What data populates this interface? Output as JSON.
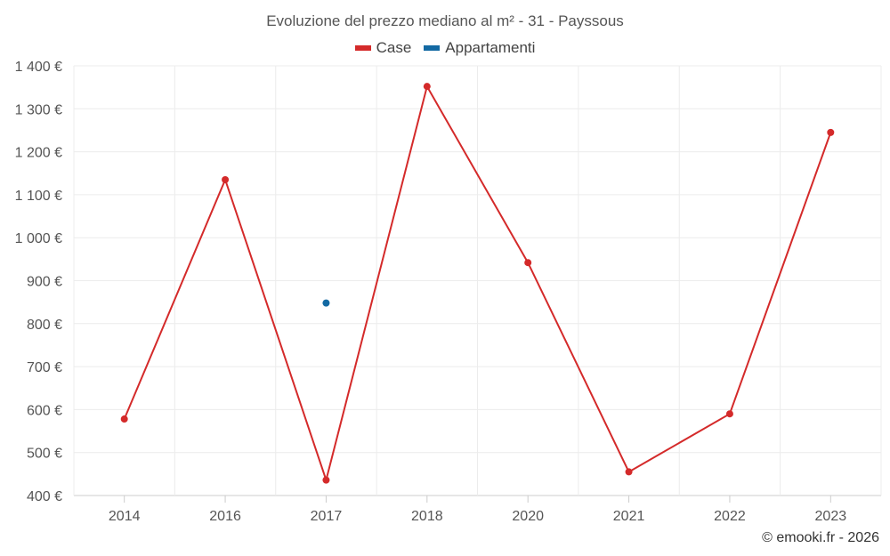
{
  "chart_data": {
    "type": "line",
    "title": "Evoluzione del prezzo mediano al m² - 31 - Payssous",
    "categories": [
      "2014",
      "2016",
      "2017",
      "2018",
      "2020",
      "2021",
      "2022",
      "2023"
    ],
    "series": [
      {
        "name": "Case",
        "color": "#d42a2a",
        "values": [
          578,
          1135,
          436,
          1352,
          942,
          455,
          590,
          1245
        ]
      },
      {
        "name": "Appartamenti",
        "color": "#1369a3",
        "values": [
          null,
          null,
          848,
          null,
          null,
          null,
          null,
          null
        ]
      }
    ],
    "ylim": [
      400,
      1400
    ],
    "yticks": [
      "1 400 €",
      "1 300 €",
      "1 200 €",
      "1 100 €",
      "1 000 €",
      "900 €",
      "800 €",
      "700 €",
      "600 €",
      "500 €",
      "400 €"
    ],
    "ytick_values": [
      1400,
      1300,
      1200,
      1100,
      1000,
      900,
      800,
      700,
      600,
      500,
      400
    ],
    "grid": true,
    "legend": "top-center"
  },
  "credit": "© emooki.fr - 2026"
}
